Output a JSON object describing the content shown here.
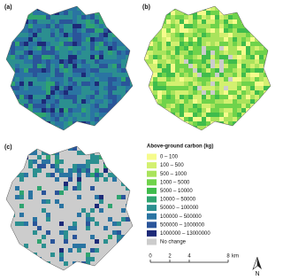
{
  "panels": [
    {
      "label": "(a)"
    },
    {
      "label": "(b)"
    },
    {
      "label": "(c)"
    }
  ],
  "legend": {
    "title": "Above-ground carbon (kg)",
    "items": [
      {
        "label": "0 – 100",
        "color": "#f6fb8c"
      },
      {
        "label": "100 – 500",
        "color": "#d3f070"
      },
      {
        "label": "500 – 1000",
        "color": "#a9e35c"
      },
      {
        "label": "1000 – 5000",
        "color": "#6fd34b"
      },
      {
        "label": "5000 – 10000",
        "color": "#3fbc4c"
      },
      {
        "label": "10000 – 50000",
        "color": "#2fa470"
      },
      {
        "label": "50000 – 100000",
        "color": "#2b8f90"
      },
      {
        "label": "100000 – 500000",
        "color": "#2a74a2"
      },
      {
        "label": "500000 – 1000000",
        "color": "#2a559a"
      },
      {
        "label": "1000000 – 13000000",
        "color": "#1d2a78"
      },
      {
        "label": "No change",
        "color": "#cccccc"
      }
    ]
  },
  "scale_bar": {
    "ticks": [
      0,
      2,
      4,
      8
    ],
    "unit": "km"
  },
  "north": "N"
}
